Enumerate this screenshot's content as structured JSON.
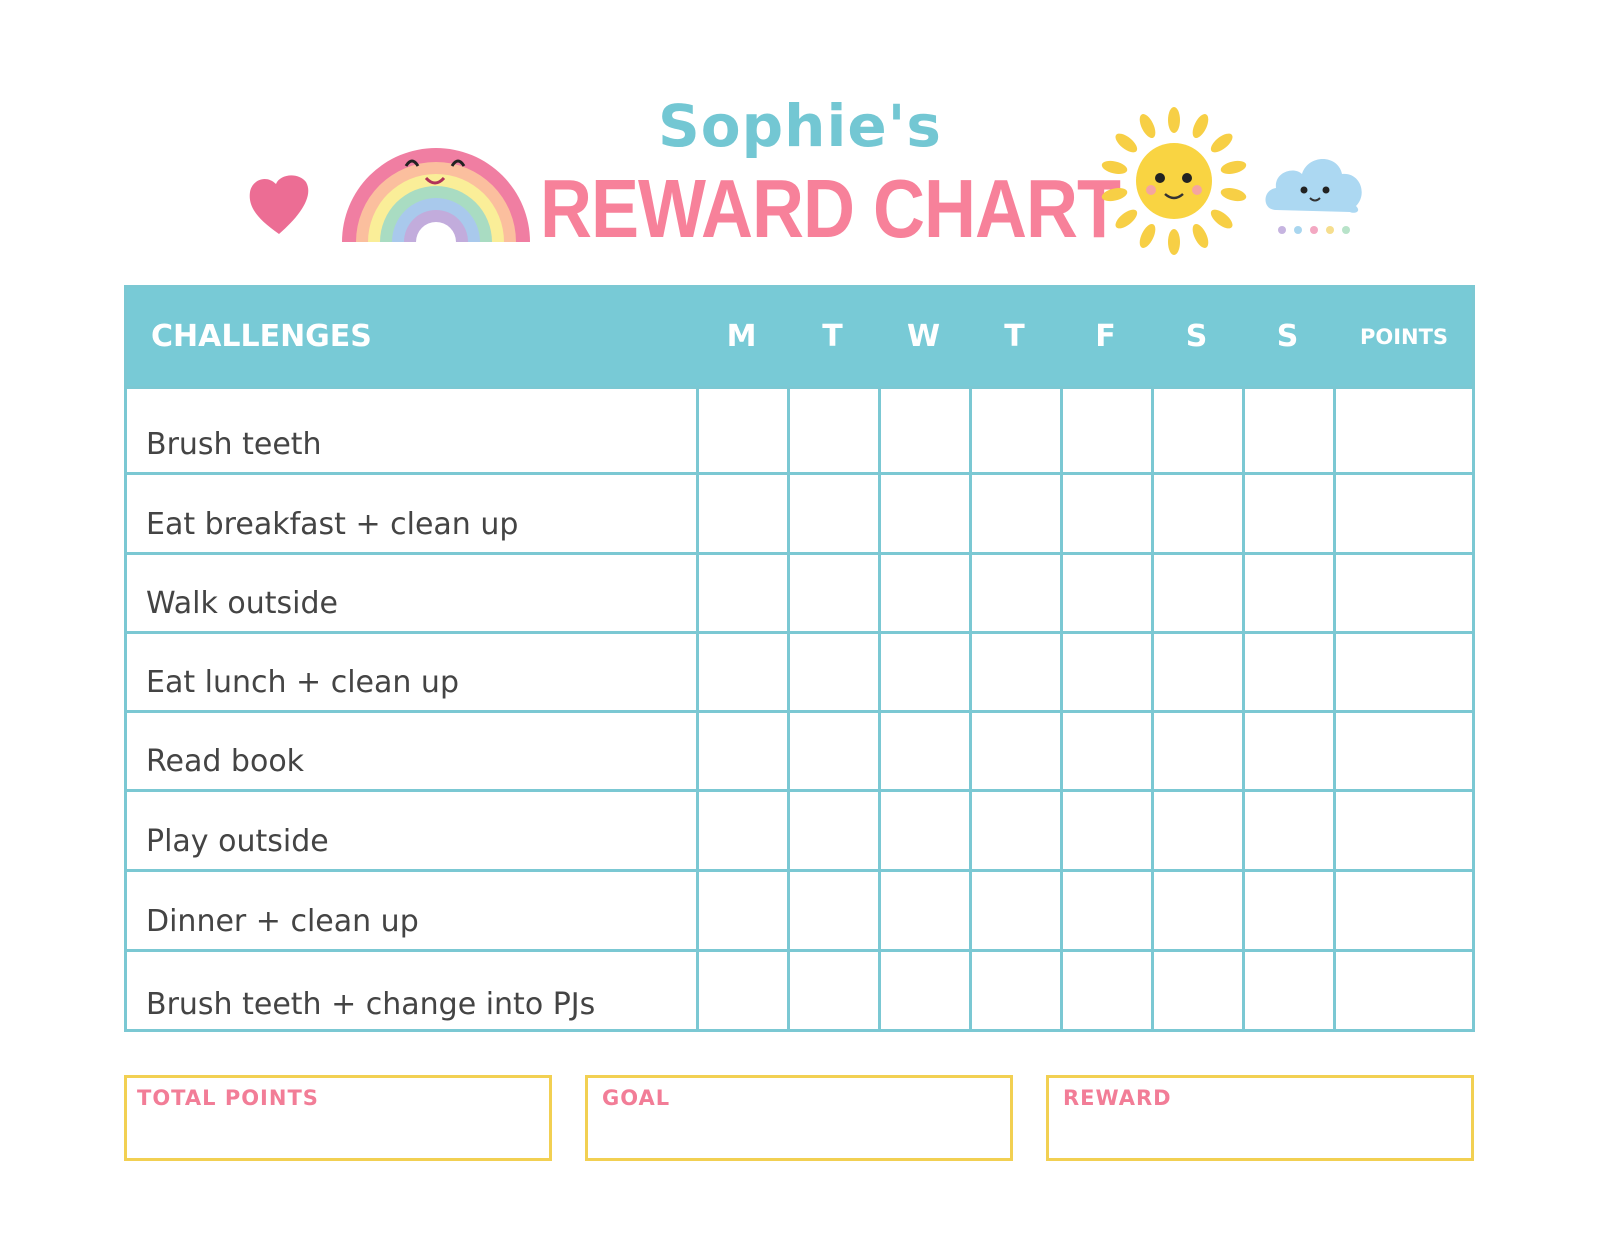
{
  "header": {
    "name": "Sophie's",
    "title": "REWARD CHART"
  },
  "table": {
    "columns": [
      "CHALLENGES",
      "M",
      "T",
      "W",
      "T",
      "F",
      "S",
      "S",
      "POINTS"
    ],
    "rows": [
      "Brush teeth",
      "Eat breakfast + clean up",
      "Walk outside",
      "Eat lunch + clean up",
      "Read book",
      "Play outside",
      "Dinner + clean up",
      "Brush teeth + change into PJs"
    ]
  },
  "footer": {
    "total_points": "TOTAL POINTS",
    "goal": "GOAL",
    "reward": "REWARD"
  },
  "colors": {
    "teal": "#78cad6",
    "pink": "#f7819a",
    "yellow": "#f2d052",
    "text": "#444444"
  },
  "icons": [
    "heart-icon",
    "rainbow-icon",
    "sun-icon",
    "cloud-icon"
  ]
}
